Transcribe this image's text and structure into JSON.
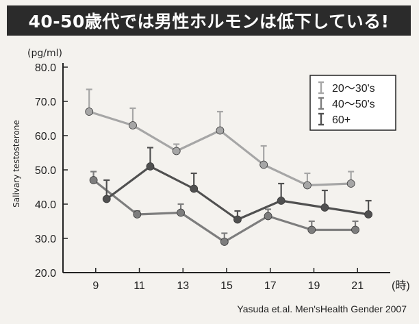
{
  "banner": {
    "title": "40-50歳代では男性ホルモンは低下している!"
  },
  "chart_data": {
    "type": "line",
    "title": "",
    "unit": "(pg/ml)",
    "ylabel": "Salivary testosterone",
    "xlabel": "",
    "x_unit": "(時)",
    "ylim": [
      20.0,
      80.0
    ],
    "yticks": [
      "20.0",
      "30.0",
      "40.0",
      "50.0",
      "60.0",
      "70.0",
      "80.0"
    ],
    "xlim": [
      7.5,
      22.5
    ],
    "xticks": [
      9,
      11,
      13,
      15,
      17,
      19,
      21
    ],
    "grid": false,
    "legend_position": "top-right",
    "error_bars": "upper",
    "series": [
      {
        "name": "20〜30's",
        "color": "#a6a6a6",
        "x": [
          8.7,
          10.7,
          12.7,
          14.7,
          16.7,
          18.7,
          20.7
        ],
        "y": [
          67.0,
          63.0,
          55.5,
          61.5,
          51.5,
          45.5,
          46.0
        ],
        "err": [
          6.5,
          5.0,
          2.0,
          5.5,
          5.5,
          3.5,
          3.5
        ]
      },
      {
        "name": "40〜50's",
        "color": "#7d7d7d",
        "x": [
          8.9,
          10.9,
          12.9,
          14.9,
          16.9,
          18.9,
          20.9
        ],
        "y": [
          47.0,
          37.0,
          37.5,
          29.0,
          36.5,
          32.5,
          32.5
        ],
        "err": [
          2.5,
          1.0,
          2.5,
          2.5,
          2.0,
          2.5,
          2.5
        ]
      },
      {
        "name": "60+",
        "color": "#505050",
        "x": [
          9.5,
          11.5,
          13.5,
          15.5,
          17.5,
          19.5,
          21.5
        ],
        "y": [
          41.5,
          51.0,
          44.5,
          35.5,
          41.0,
          39.0,
          37.0
        ],
        "err": [
          5.5,
          5.5,
          4.5,
          2.5,
          5.0,
          5.0,
          4.0
        ]
      }
    ]
  },
  "source": "Yasuda et.al. Men'sHealth Gender 2007"
}
